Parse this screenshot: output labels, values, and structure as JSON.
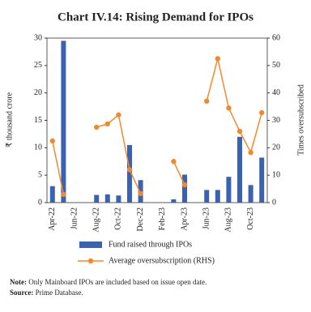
{
  "chart_data": {
    "type": "bar-line",
    "title": "Chart IV.14: Rising Demand for IPOs",
    "y_label": "₹ thousand crore",
    "y2_label": "Times oversubscribed",
    "categories": [
      "Apr-22",
      null,
      "Jun-22",
      null,
      "Aug-22",
      null,
      "Oct-22",
      null,
      "Dec-22",
      null,
      "Feb-23",
      null,
      "Apr-23",
      null,
      "Jun-23",
      null,
      "Aug-23",
      null,
      "Oct-23",
      null
    ],
    "series": [
      {
        "name": "Fund raised through IPOs",
        "type": "bar",
        "color": "#3a62b0",
        "values": [
          3,
          29.5,
          0,
          0,
          1.4,
          1.5,
          1.3,
          10.5,
          4.1,
          0,
          0,
          0.6,
          5.1,
          0,
          2.3,
          2.3,
          4.7,
          12,
          3.2,
          8.2
        ]
      },
      {
        "name": "Average oversubscription (RHS)",
        "type": "line",
        "axis": "y2",
        "color": "#f28a2c",
        "values": [
          22.5,
          3,
          null,
          null,
          27.5,
          28.7,
          32,
          12,
          3.3,
          null,
          null,
          15,
          6.5,
          null,
          37,
          52.5,
          34.5,
          26,
          18.3,
          32.8
        ]
      }
    ],
    "ylim": [
      0,
      30
    ],
    "yticks": [
      0,
      5,
      10,
      15,
      20,
      25,
      30
    ],
    "y2lim": [
      0,
      60
    ],
    "y2ticks": [
      0,
      10,
      20,
      30,
      40,
      50,
      60
    ],
    "legend": "bottom"
  },
  "note_label": "Note:",
  "note": "Only Mainboard IPOs are included based on issue open date.",
  "source_label": "Source:",
  "source": "Prime Database."
}
